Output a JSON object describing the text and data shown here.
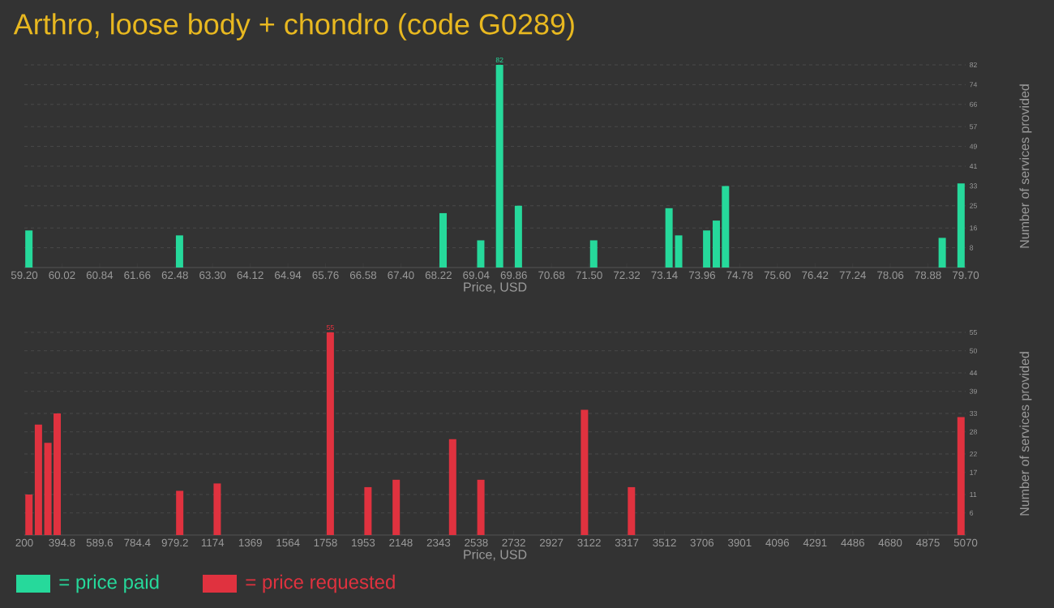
{
  "chart_data": [
    {
      "type": "bar",
      "title": "Arthro, loose body + chondro (code G0289)",
      "xlabel": "Price, USD",
      "ylabel": "Number of services provided",
      "x": [
        59.3,
        62.58,
        68.32,
        69.14,
        69.55,
        69.96,
        71.6,
        73.24,
        73.45,
        74.06,
        74.27,
        74.47,
        79.19,
        79.6
      ],
      "series": [
        {
          "name": "= price paid",
          "color": "#26d99b",
          "values": [
            15,
            13,
            22,
            11,
            82,
            25,
            11,
            24,
            13,
            15,
            19,
            33,
            12,
            34
          ],
          "value_labels": [
            null,
            null,
            null,
            null,
            "82",
            null,
            null,
            null,
            null,
            null,
            null,
            null,
            null,
            null
          ]
        }
      ],
      "xlim": [
        59.2,
        79.7
      ],
      "xticks": [
        {
          "value": 59.2,
          "label": "59.20"
        },
        60.02,
        60.84,
        61.66,
        62.48,
        {
          "value": 63.3,
          "label": "63.30"
        },
        64.12,
        64.94,
        65.76,
        66.58,
        {
          "value": 67.4,
          "label": "67.40"
        },
        68.22,
        69.04,
        69.86,
        70.68,
        {
          "value": 71.5,
          "label": "71.50"
        },
        72.32,
        73.14,
        73.96,
        74.78,
        {
          "value": 75.6,
          "label": "75.60"
        },
        76.42,
        77.24,
        78.06,
        78.88,
        {
          "value": 79.7,
          "label": "79.70"
        }
      ],
      "ylim": [
        0,
        82
      ],
      "yticks": [
        8,
        16,
        25,
        33,
        41,
        49,
        57,
        66,
        74,
        82
      ],
      "grid": "y",
      "legend": "bottom left"
    },
    {
      "type": "bar",
      "xlabel": "Price, USD",
      "ylabel": "Number of services provided",
      "x": [
        224,
        273,
        322,
        370,
        1004,
        1198,
        1783,
        1978,
        2124,
        2416,
        2562,
        3098,
        3341,
        5046
      ],
      "series": [
        {
          "name": "= price requested",
          "color": "#e0323f",
          "values": [
            11,
            30,
            25,
            33,
            12,
            14,
            55,
            13,
            15,
            26,
            15,
            34,
            13,
            32
          ],
          "value_labels": [
            null,
            null,
            null,
            null,
            null,
            null,
            "55",
            null,
            null,
            null,
            null,
            null,
            null,
            null
          ]
        }
      ],
      "xlim": [
        200,
        5070
      ],
      "xticks": [
        200,
        394.8,
        589.6,
        784.4,
        979.2,
        1174,
        1369,
        1564,
        1758,
        1953,
        2148,
        2343,
        2538,
        2732,
        2927,
        3122,
        3317,
        3512,
        3706,
        3901,
        4096,
        4291,
        4486,
        4680,
        4875,
        5070
      ],
      "ylim": [
        0,
        55
      ],
      "yticks": [
        6,
        11,
        17,
        22,
        28,
        33,
        39,
        44,
        50,
        55
      ],
      "grid": "y",
      "legend": "bottom left"
    }
  ]
}
